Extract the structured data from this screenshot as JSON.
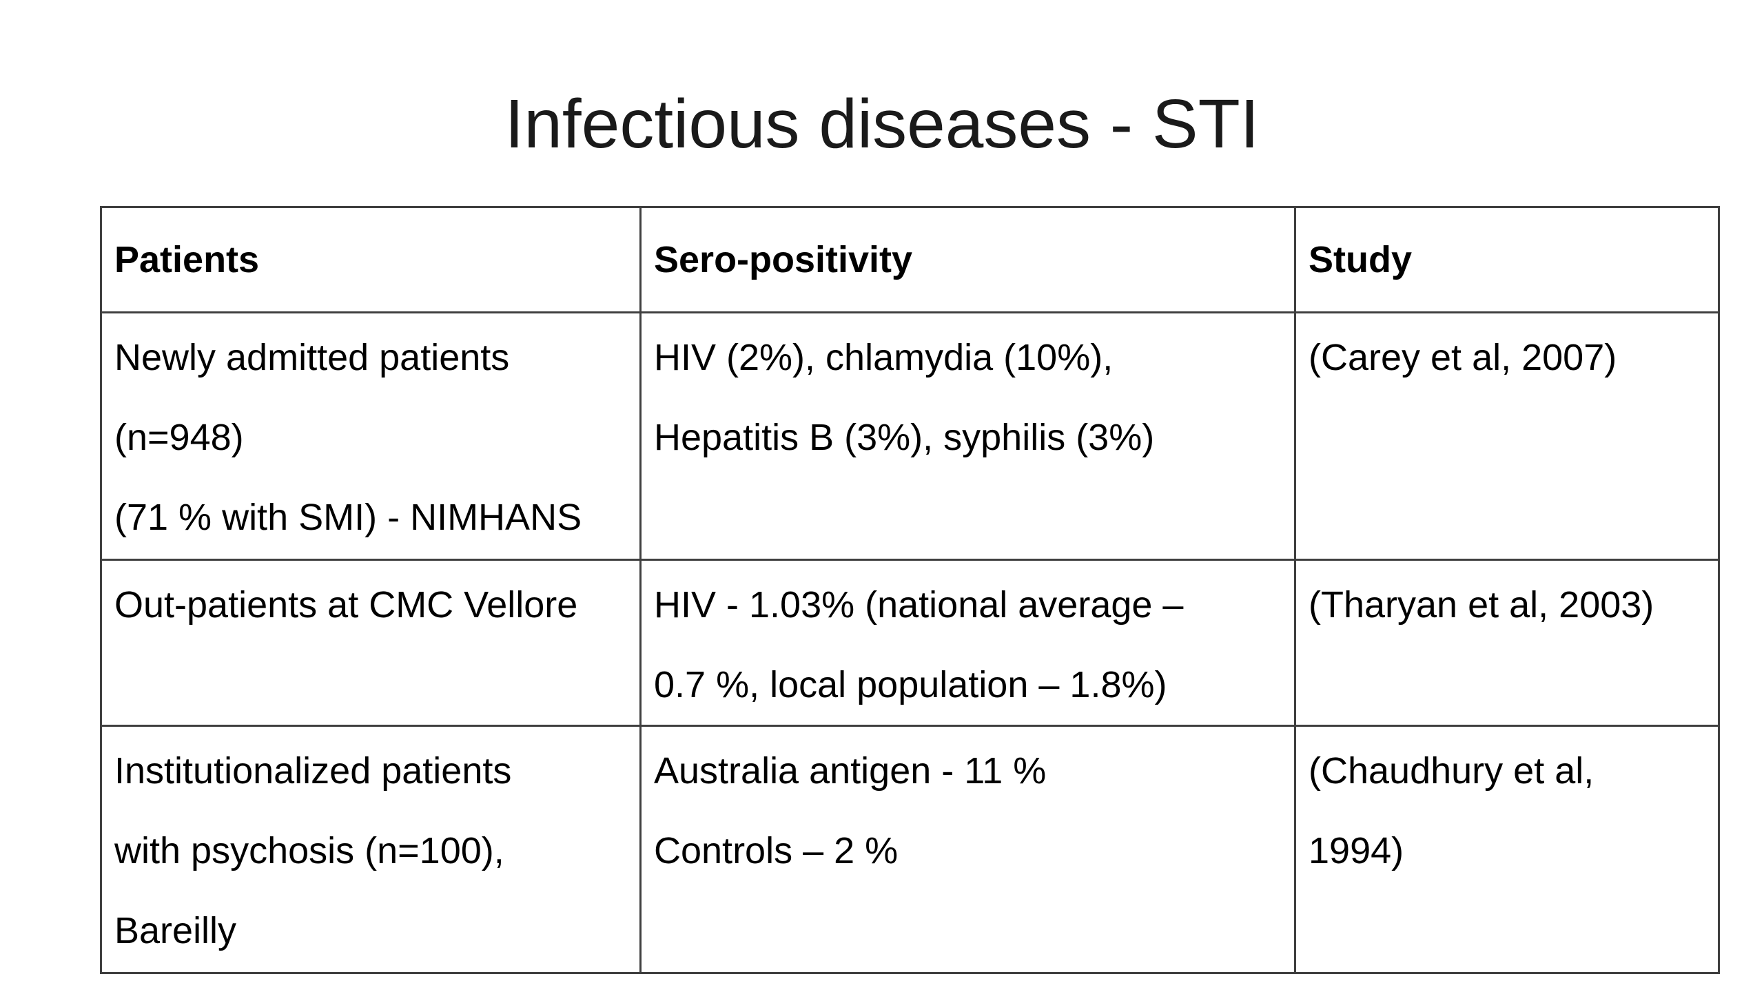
{
  "slide": {
    "title": "Infectious diseases - STI"
  },
  "table": {
    "headers": [
      "Patients",
      "Sero-positivity",
      "Study"
    ],
    "rows": [
      {
        "patients": [
          "Newly admitted patients",
          "(n=948)",
          "(71 % with SMI) - NIMHANS"
        ],
        "seropositivity": [
          "HIV (2%), chlamydia (10%),",
          "Hepatitis B (3%), syphilis (3%)"
        ],
        "study": [
          "(Carey et al, 2007)"
        ]
      },
      {
        "patients": [
          "Out-patients at CMC Vellore"
        ],
        "seropositivity": [
          "HIV - 1.03% (national average –",
          "0.7 %, local population – 1.8%)"
        ],
        "study": [
          "(Tharyan et al, 2003)"
        ]
      },
      {
        "patients": [
          "Institutionalized patients",
          "with psychosis  (n=100),",
          "Bareilly"
        ],
        "seropositivity": [
          "Australia antigen - 11 %",
          "Controls – 2 %"
        ],
        "study": [
          "(Chaudhury et al,",
          "1994)"
        ]
      }
    ]
  }
}
